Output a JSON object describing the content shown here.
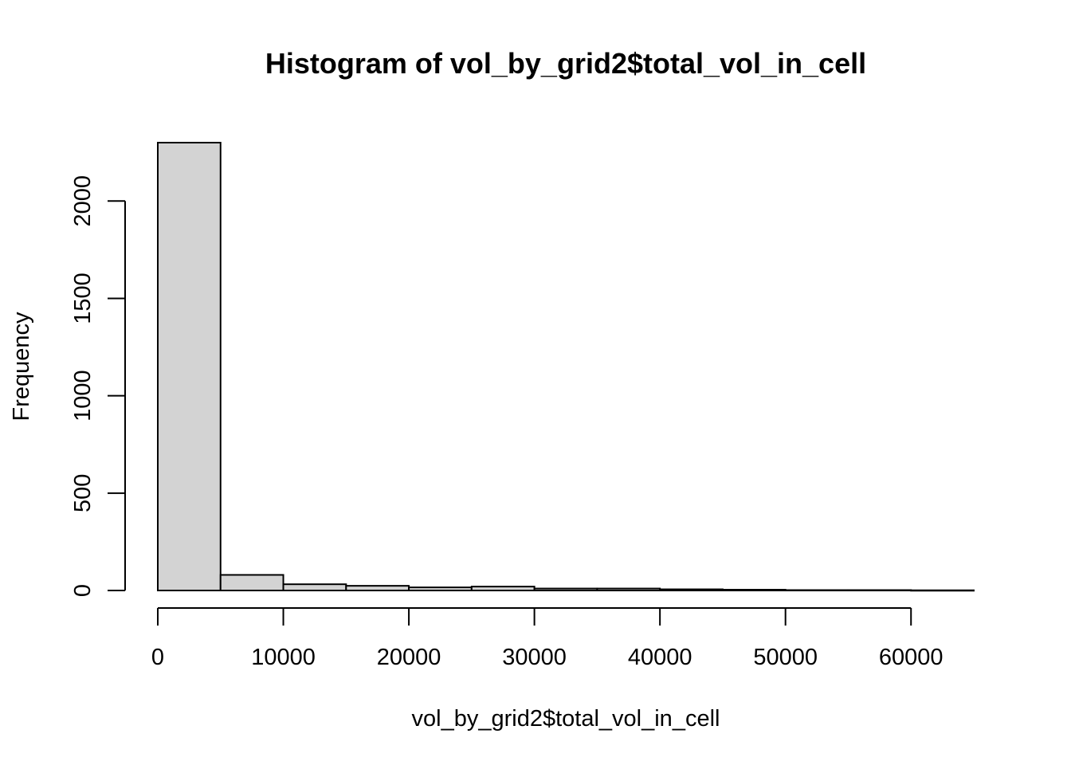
{
  "chart_data": {
    "type": "bar",
    "title": "Histogram of vol_by_grid2$total_vol_in_cell",
    "xlabel": "vol_by_grid2$total_vol_in_cell",
    "ylabel": "Frequency",
    "xlim": [
      0,
      65000
    ],
    "ylim": [
      0,
      2300
    ],
    "x_ticks": [
      0,
      10000,
      20000,
      30000,
      40000,
      50000,
      60000
    ],
    "y_ticks": [
      0,
      500,
      1000,
      1500,
      2000
    ],
    "bin_edges": [
      0,
      5000,
      10000,
      15000,
      20000,
      25000,
      30000,
      35000,
      40000,
      45000,
      50000,
      55000,
      60000,
      65000
    ],
    "values": [
      2300,
      80,
      32,
      24,
      16,
      20,
      10,
      10,
      6,
      4,
      2,
      2,
      1
    ],
    "bar_color": "#d3d3d3",
    "border_color": "#000000",
    "grid": false
  }
}
